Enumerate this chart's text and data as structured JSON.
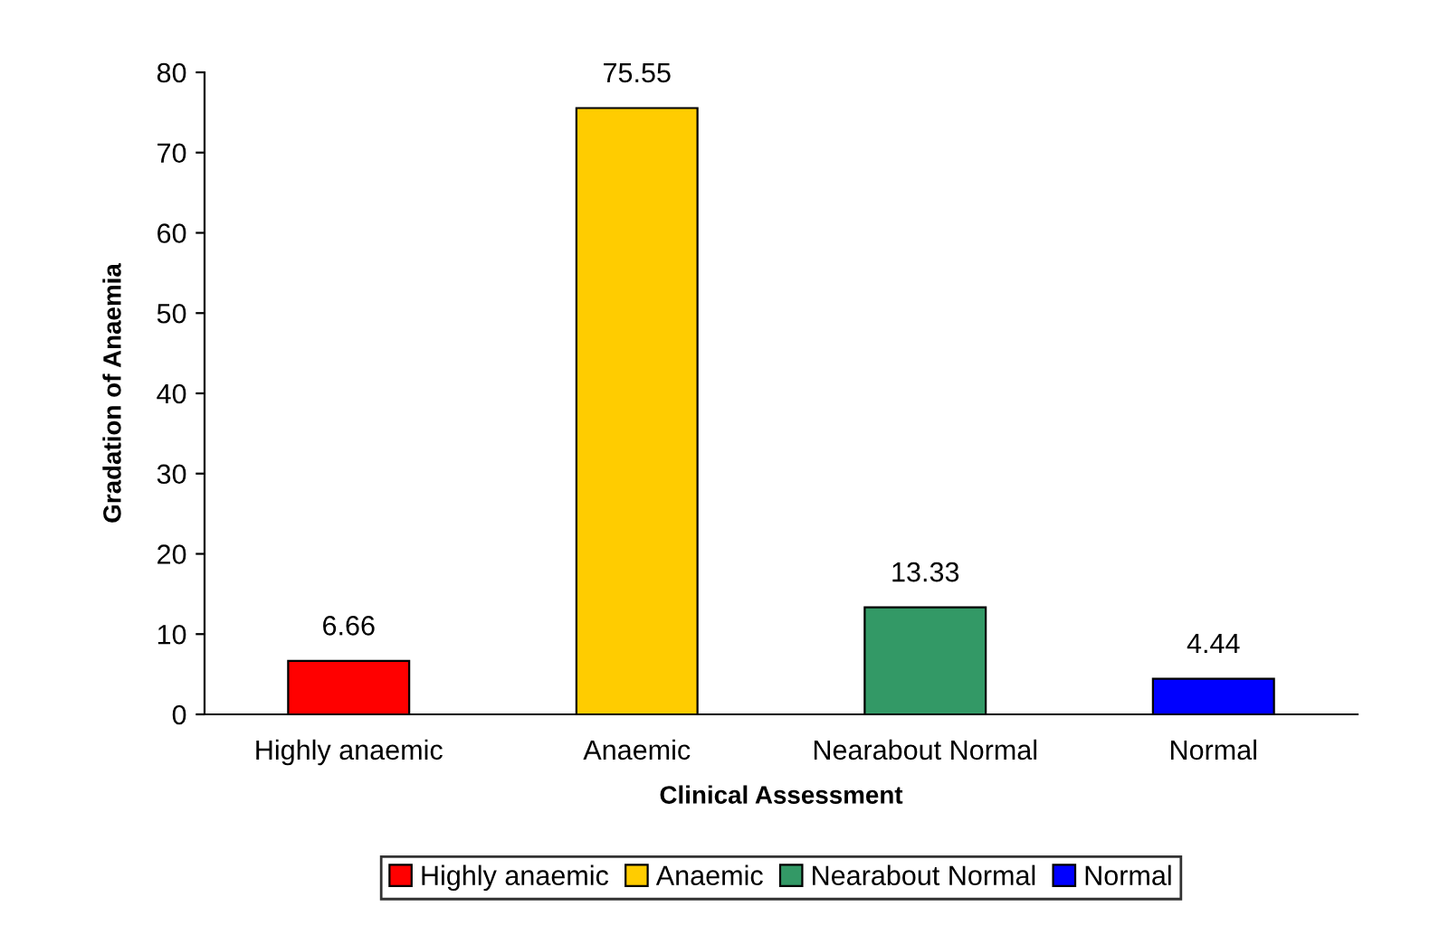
{
  "chart_data": {
    "type": "bar",
    "xlabel": "Clinical Assessment",
    "ylabel": "Gradation of Anaemia",
    "categories": [
      "Highly anaemic",
      "Anaemic",
      "Nearabout Normal",
      "Normal"
    ],
    "series": [
      {
        "name": "Highly anaemic",
        "color": "#ff0000",
        "values": [
          6.66,
          null,
          null,
          null
        ]
      },
      {
        "name": "Anaemic",
        "color": "#ffcc00",
        "values": [
          null,
          75.55,
          null,
          null
        ]
      },
      {
        "name": "Nearabout Normal",
        "color": "#339966",
        "values": [
          null,
          null,
          13.33,
          null
        ]
      },
      {
        "name": "Normal",
        "color": "#0000ff",
        "values": [
          null,
          null,
          null,
          4.44
        ]
      }
    ],
    "ylim": [
      0,
      80
    ],
    "yticks": [
      0,
      10,
      20,
      30,
      40,
      50,
      60,
      70,
      80
    ],
    "data_labels": true,
    "grid": false,
    "legend": "bottom"
  }
}
